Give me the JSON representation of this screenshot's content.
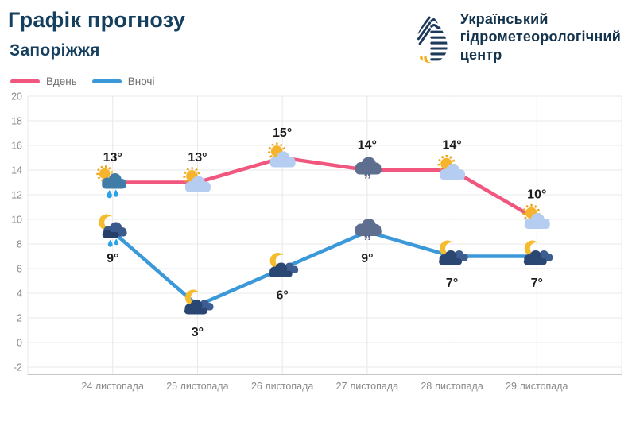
{
  "page": {
    "title": "Графік прогнозу",
    "subtitle": "Запоріжжя"
  },
  "logo": {
    "icon": "ukrhydromet-droplet-icon",
    "line1": "Український",
    "line2": "гідрометеорологічний",
    "line3": "центр",
    "text_color": "#14334d",
    "navy": "#1d3a5c",
    "yellow": "#f2b01e"
  },
  "chart_data": {
    "type": "line",
    "title": "Графік прогнозу",
    "subtitle": "Запоріжжя",
    "categories": [
      "24 листопада",
      "25 листопада",
      "26 листопада",
      "27 листопада",
      "28 листопада",
      "29 листопада"
    ],
    "series": [
      {
        "name": "Вдень",
        "color": "#f0567e",
        "values": [
          13,
          13,
          15,
          14,
          14,
          10
        ],
        "value_labels": [
          "13°",
          "13°",
          "15°",
          "14°",
          "14°",
          "10°"
        ],
        "icons": [
          "sun-rain-cloud",
          "sun-cloud",
          "sun-cloud",
          "fog-cloud",
          "sun-cloud",
          "sun-cloud"
        ],
        "label_position": "above"
      },
      {
        "name": "Вночі",
        "color": "#3b99d9",
        "values": [
          9,
          3,
          6,
          9,
          7,
          7
        ],
        "value_labels": [
          "9°",
          "3°",
          "6°",
          "9°",
          "7°",
          "7°"
        ],
        "icons": [
          "moon-rain-cloud",
          "moon-cloud",
          "moon-cloud",
          "fog-cloud",
          "moon-cloud",
          "moon-cloud"
        ],
        "label_position": "below"
      }
    ],
    "ylim": [
      -2,
      20
    ],
    "ytick_step": 2,
    "yticks": [
      20,
      18,
      16,
      14,
      12,
      10,
      8,
      6,
      4,
      2,
      0,
      -2
    ],
    "grid": true,
    "legend_position": "top-left",
    "grid_color": "#e8e8e8",
    "axis_color": "#c6c6c6",
    "tick_label_color": "#8a8a8a",
    "data_label_color": "#1c1c1c"
  }
}
